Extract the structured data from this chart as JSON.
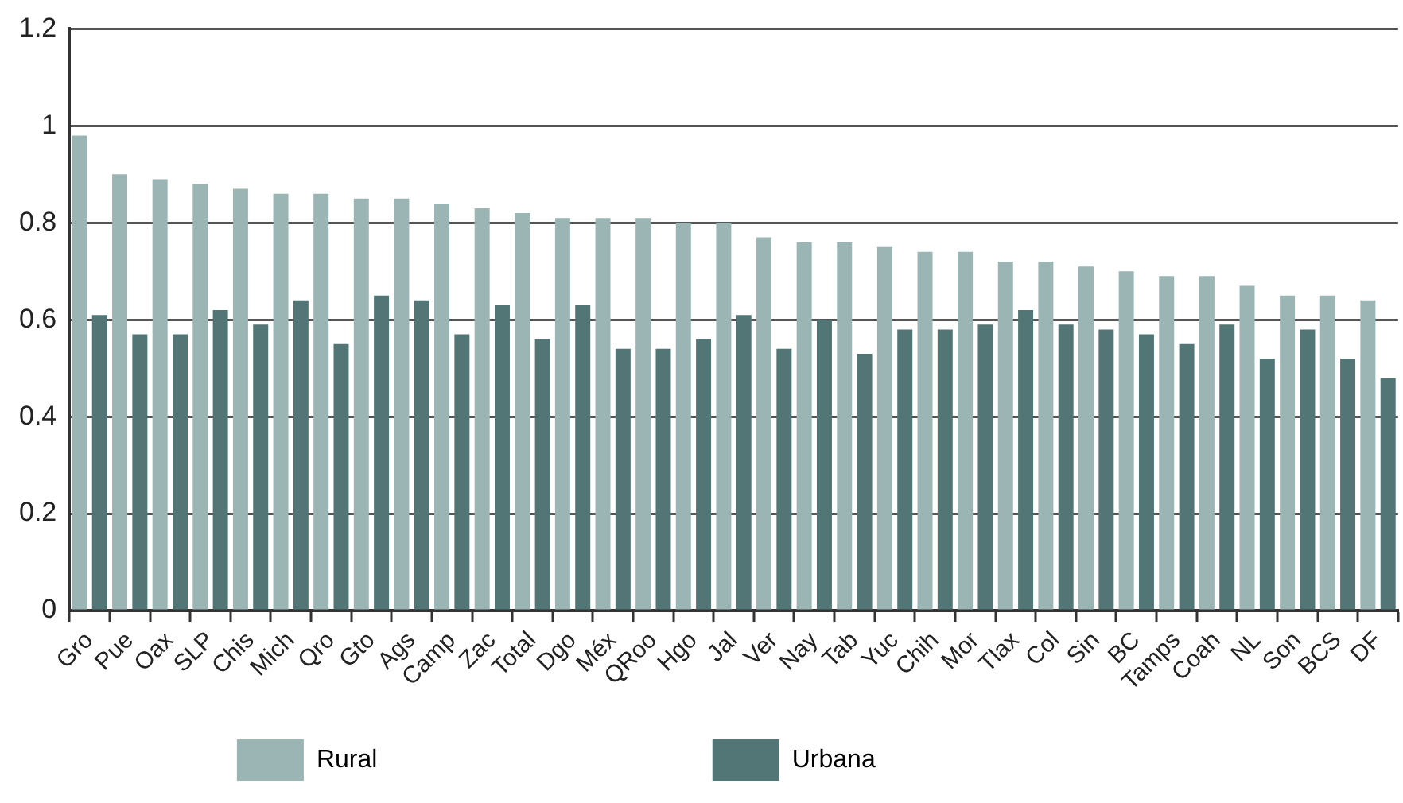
{
  "chart_data": {
    "type": "bar",
    "categories": [
      "Gro",
      "Pue",
      "Oax",
      "SLP",
      "Chis",
      "Mich",
      "Qro",
      "Gto",
      "Ags",
      "Camp",
      "Zac",
      "Total",
      "Dgo",
      "Méx",
      "QRoo",
      "Hgo",
      "Jal",
      "Ver",
      "Nay",
      "Tab",
      "Yuc",
      "Chih",
      "Mor",
      "Tlax",
      "Col",
      "Sin",
      "BC",
      "Tamps",
      "Coah",
      "NL",
      "Son",
      "BCS",
      "DF"
    ],
    "series": [
      {
        "name": "Rural",
        "color": "#9bb5b5",
        "values": [
          0.98,
          0.9,
          0.89,
          0.88,
          0.87,
          0.86,
          0.86,
          0.85,
          0.85,
          0.84,
          0.83,
          0.82,
          0.81,
          0.81,
          0.81,
          0.8,
          0.8,
          0.77,
          0.76,
          0.76,
          0.75,
          0.74,
          0.74,
          0.72,
          0.72,
          0.71,
          0.7,
          0.69,
          0.69,
          0.67,
          0.65,
          0.65,
          0.64
        ]
      },
      {
        "name": "Urbana",
        "color": "#517675",
        "values": [
          0.61,
          0.57,
          0.57,
          0.62,
          0.59,
          0.64,
          0.55,
          0.65,
          0.64,
          0.57,
          0.63,
          0.56,
          0.63,
          0.54,
          0.54,
          0.56,
          0.61,
          0.54,
          0.6,
          0.53,
          0.58,
          0.58,
          0.59,
          0.62,
          0.59,
          0.58,
          0.57,
          0.55,
          0.59,
          0.52,
          0.58,
          0.52,
          0.48
        ]
      }
    ],
    "ylim": [
      0,
      1.2
    ],
    "yticks": [
      0,
      0.2,
      0.4,
      0.6,
      0.8,
      1,
      1.2
    ],
    "grid": "y",
    "legend": "bottom"
  }
}
